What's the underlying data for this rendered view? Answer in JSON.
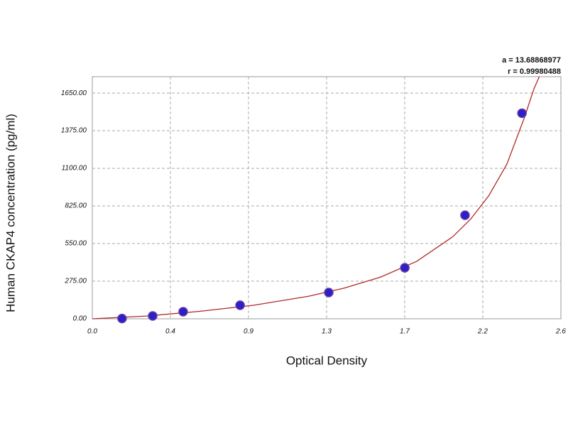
{
  "chart_data": {
    "type": "scatter",
    "x_label": "Optical Density",
    "y_label": "Human CKAP4 concentration (pg/ml)",
    "annotations": [
      "a = 13.68868977",
      "r = 0.99980488"
    ],
    "xlim": [
      0,
      2.6
    ],
    "ylim": [
      0,
      1770
    ],
    "xticks": [
      {
        "value": 0,
        "label": "0.0"
      },
      {
        "value": 0.4333,
        "label": "0.4"
      },
      {
        "value": 0.8667,
        "label": "0.9"
      },
      1.3,
      {
        "value": 1.7333,
        "label": "1.7"
      },
      {
        "value": 2.1667,
        "label": "2.2"
      },
      2.6
    ],
    "yticks": [
      {
        "value": 0,
        "label": "0.00"
      },
      {
        "value": 275,
        "label": "275.00"
      },
      {
        "value": 550,
        "label": "550.00"
      },
      {
        "value": 825,
        "label": "825.00"
      },
      {
        "value": 1100,
        "label": "1100.00"
      },
      {
        "value": 1375,
        "label": "1375.00"
      },
      {
        "value": 1650,
        "label": "1650.00"
      }
    ],
    "grid": true,
    "series": [
      {
        "style": "points",
        "color": "#2a1fc8",
        "x": [
          0.165,
          0.335,
          0.504,
          0.82,
          1.312,
          1.734,
          2.068,
          2.384
        ],
        "values": [
          2,
          21,
          52,
          99,
          192,
          373,
          757,
          1503
        ]
      },
      {
        "style": "line",
        "color": "#b0282a",
        "x": [
          0,
          0.3,
          0.6,
          0.9,
          1.2,
          1.4,
          1.6,
          1.8,
          2.0,
          2.1,
          2.2,
          2.3,
          2.4,
          2.45,
          2.48
        ],
        "values": [
          0,
          20,
          55,
          100,
          165,
          225,
          305,
          420,
          600,
          730,
          900,
          1130,
          1480,
          1680,
          1770
        ]
      }
    ]
  }
}
